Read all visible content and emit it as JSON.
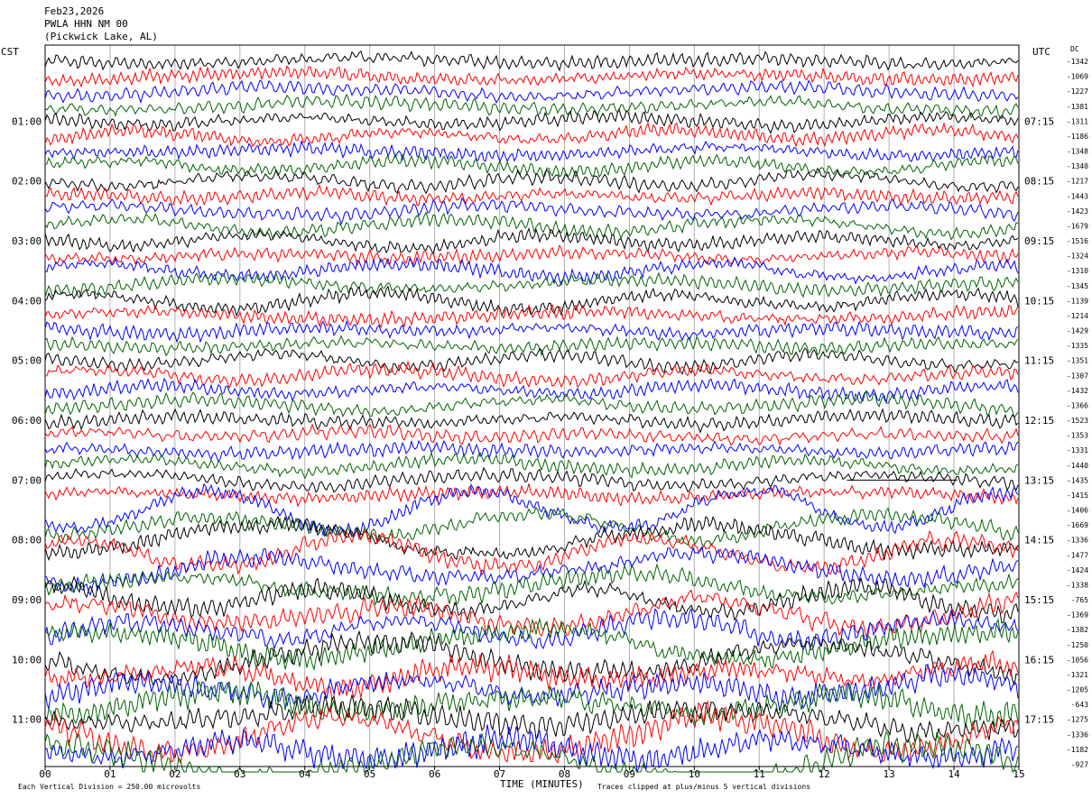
{
  "header": {
    "date": "Feb23,2026",
    "station": "PWLA HHN NM 00",
    "location": "(Pickwick Lake, AL)"
  },
  "left_axis_label": "CST",
  "right_axis_label": "UTC",
  "dc_label": "DC",
  "footer": {
    "scale_note": "Each Vertical Division =  250.00 microvolts",
    "x_title": "TIME (MINUTES)",
    "clip_note": "Traces clipped at plus/minus 5 vertical divisions"
  },
  "chart_data": {
    "type": "line",
    "title": "",
    "xlabel": "TIME (MINUTES)",
    "ylabel": "",
    "xlim": [
      0,
      15
    ],
    "x_ticks": [
      "00",
      "01",
      "02",
      "03",
      "04",
      "05",
      "06",
      "07",
      "08",
      "09",
      "10",
      "11",
      "12",
      "13",
      "14",
      "15"
    ],
    "left_hour_labels": [
      "01:00",
      "02:00",
      "03:00",
      "04:00",
      "05:00",
      "06:00",
      "07:00",
      "08:00",
      "09:00",
      "10:00",
      "11:00"
    ],
    "right_hour_labels": [
      "07:15",
      "08:15",
      "09:15",
      "10:15",
      "11:15",
      "12:15",
      "13:15",
      "14:15",
      "15:15",
      "16:15",
      "17:15"
    ],
    "trace_count": 48,
    "trace_colors": [
      "#000000",
      "#ff0000",
      "#0000ff",
      "#006400"
    ],
    "dc_offsets": [
      "-1342",
      "-1069",
      "-1227",
      "-1381",
      "-1311",
      "-1186",
      "-1348",
      "-1340",
      "-1217",
      "-1443",
      "-1423",
      "-1679",
      "-1516",
      "-1324",
      "-1310",
      "-1345",
      "-1139",
      "-1214",
      "-1429",
      "-1335",
      "-1351",
      "-1307",
      "-1432",
      "-1366",
      "-1523",
      "-1353",
      "-1331",
      "-1440",
      "-1435",
      "-1415",
      "-1406",
      "-1669",
      "-1336",
      "-1477",
      "-1424",
      "-1338",
      "-765",
      "-1369",
      "-1382",
      "-1250",
      "-1056",
      "-1321",
      "-1205",
      "-643",
      "-1275",
      "-1336",
      "-1182",
      "-927"
    ],
    "flatline_segment_minutes": [
      12.35,
      14.05
    ],
    "flatline_trace_index": 28
  }
}
